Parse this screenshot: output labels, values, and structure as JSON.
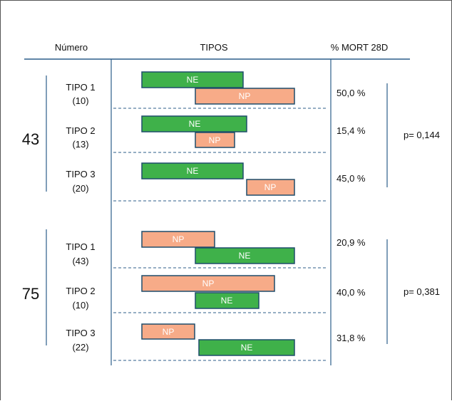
{
  "header": {
    "numero": "Número",
    "tipos": "TIPOS",
    "mort": "% MORT 28D"
  },
  "colors": {
    "ne": "#3fb14a",
    "np": "#f7ab88",
    "bar_border": "#1f4d6b",
    "line": "#2c5d8a"
  },
  "groups": [
    {
      "count": "43",
      "p_value": "p= 0,144",
      "tipos": [
        {
          "name": "TIPO 1",
          "n": "(10)",
          "mort": "50,0 %",
          "bars": [
            {
              "label": "NE",
              "kind": "ne"
            },
            {
              "label": "NP",
              "kind": "np"
            }
          ]
        },
        {
          "name": "TIPO 2",
          "n": "(13)",
          "mort": "15,4 %",
          "bars": [
            {
              "label": "NE",
              "kind": "ne"
            },
            {
              "label": "NP",
              "kind": "np"
            }
          ]
        },
        {
          "name": "TIPO 3",
          "n": "(20)",
          "mort": "45,0 %",
          "bars": [
            {
              "label": "NE",
              "kind": "ne"
            },
            {
              "label": "NP",
              "kind": "np"
            }
          ]
        }
      ]
    },
    {
      "count": "75",
      "p_value": "p= 0,381",
      "tipos": [
        {
          "name": "TIPO 1",
          "n": "(43)",
          "mort": "20,9 %",
          "bars": [
            {
              "label": "NP",
              "kind": "np"
            },
            {
              "label": "NE",
              "kind": "ne"
            }
          ]
        },
        {
          "name": "TIPO 2",
          "n": "(10)",
          "mort": "40,0 %",
          "bars": [
            {
              "label": "NP",
              "kind": "np"
            },
            {
              "label": "NE",
              "kind": "ne"
            }
          ]
        },
        {
          "name": "TIPO 3",
          "n": "(22)",
          "mort": "31,8 %",
          "bars": [
            {
              "label": "NP",
              "kind": "np"
            },
            {
              "label": "NE",
              "kind": "ne"
            }
          ]
        }
      ]
    }
  ]
}
